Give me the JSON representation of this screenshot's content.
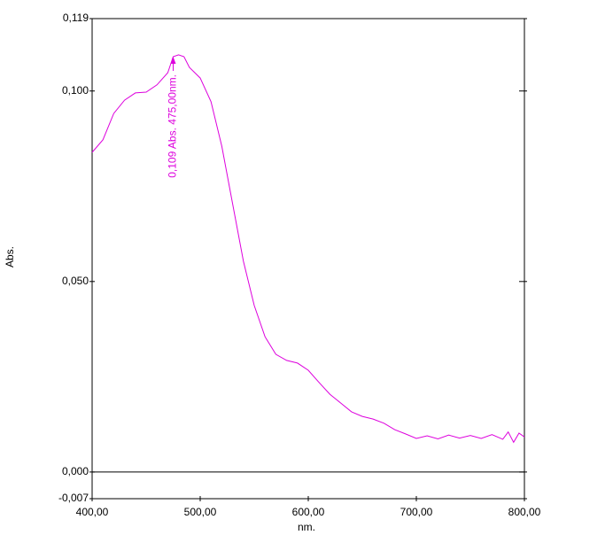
{
  "chart_data": {
    "type": "line",
    "xlabel": "nm.",
    "ylabel": "Abs.",
    "color": "#dd00dd",
    "xlim": [
      400,
      800
    ],
    "xticks": [
      {
        "value": 400,
        "label": "400,00"
      },
      {
        "value": 500,
        "label": "500,00"
      },
      {
        "value": 600,
        "label": "600,00"
      },
      {
        "value": 700,
        "label": "700,00"
      },
      {
        "value": 800,
        "label": "800,00"
      }
    ],
    "ylim": [
      -0.007,
      0.119
    ],
    "yticks": [
      {
        "value": -0.007,
        "label": "-0,007"
      },
      {
        "value": 0,
        "label": "0,000"
      },
      {
        "value": 0.05,
        "label": "0,050"
      },
      {
        "value": 0.1,
        "label": "0,100"
      },
      {
        "value": 0.119,
        "label": "0,119"
      }
    ],
    "annotation": {
      "text": "0,109  Abs. 475,00nm.",
      "x": 475,
      "y": 0.109
    },
    "x": [
      400,
      410,
      420,
      430,
      440,
      450,
      460,
      470,
      475,
      480,
      485,
      490,
      500,
      510,
      520,
      530,
      540,
      550,
      560,
      570,
      580,
      590,
      600,
      610,
      620,
      630,
      640,
      650,
      660,
      670,
      680,
      690,
      700,
      710,
      720,
      730,
      740,
      750,
      760,
      770,
      780,
      785,
      790,
      795,
      800
    ],
    "values": [
      0.0839,
      0.0872,
      0.0941,
      0.0976,
      0.0995,
      0.0997,
      0.1016,
      0.1048,
      0.109,
      0.1095,
      0.109,
      0.1062,
      0.1034,
      0.0972,
      0.0855,
      0.0704,
      0.0553,
      0.0437,
      0.0355,
      0.0309,
      0.0293,
      0.0286,
      0.0267,
      0.0235,
      0.0204,
      0.0181,
      0.0158,
      0.0146,
      0.0139,
      0.0128,
      0.0111,
      0.01,
      0.0088,
      0.0095,
      0.0087,
      0.0097,
      0.0089,
      0.0096,
      0.0088,
      0.0098,
      0.0086,
      0.0105,
      0.0078,
      0.0102,
      0.0092
    ]
  }
}
